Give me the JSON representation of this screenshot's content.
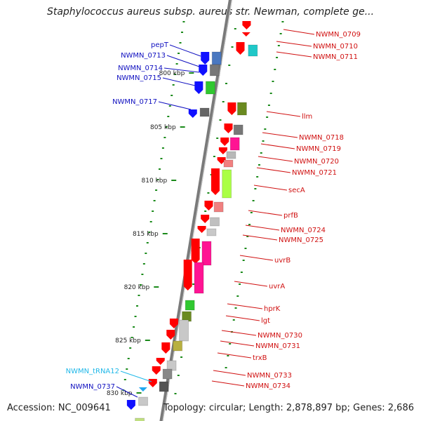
{
  "title": "Staphylococcus aureus subsp. aureus str. Newman, complete ge...",
  "footer": {
    "accession": "Accession: NC_009641",
    "summary": "Topology: circular; Length: 2,878,897 bp; Genes: 2,686"
  },
  "colors": {
    "left_label": "#1010c0",
    "right_label": "#d01010",
    "trna_label": "#20b8e8",
    "backbone": "#888888",
    "tick": "#1a8a1a"
  },
  "scale_labels": [
    "800 kbp",
    "805 kbp",
    "810 kbp",
    "815 kbp",
    "820 kbp",
    "825 kbp",
    "830 kbp"
  ],
  "left_labels": [
    {
      "text": "pepT",
      "kind": "gene"
    },
    {
      "text": "NWMN_0713",
      "kind": "gene"
    },
    {
      "text": "NWMN_0714",
      "kind": "gene"
    },
    {
      "text": "NWMN_0715",
      "kind": "gene"
    },
    {
      "text": "NWMN_0717",
      "kind": "gene"
    },
    {
      "text": "NWMN_tRNA12",
      "kind": "trna"
    },
    {
      "text": "NWMN_0737",
      "kind": "gene"
    }
  ],
  "right_labels": [
    "NWMN_0709",
    "NWMN_0710",
    "NWMN_0711",
    "llm",
    "NWMN_0718",
    "NWMN_0719",
    "NWMN_0720",
    "NWMN_0721",
    "secA",
    "prfB",
    "NWMN_0724",
    "NWMN_0725",
    "uvrB",
    "uvrA",
    "hprK",
    "lgt",
    "NWMN_0730",
    "NWMN_0731",
    "trxB",
    "NWMN_0733",
    "NWMN_0734"
  ]
}
